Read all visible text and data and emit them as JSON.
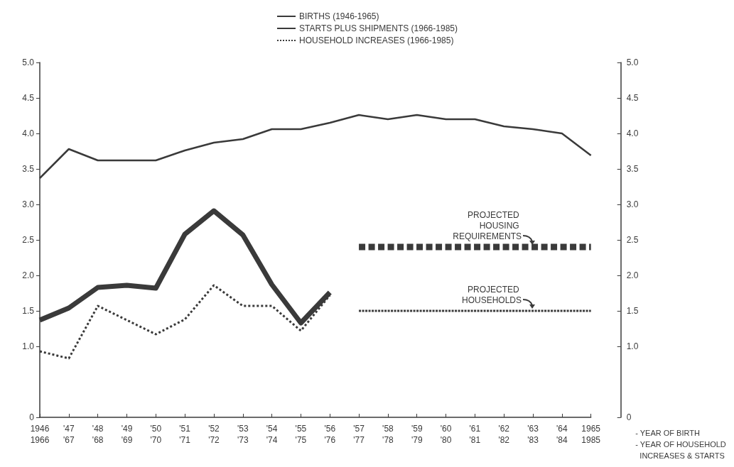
{
  "chart_data": {
    "type": "line",
    "categories": [
      "1946\n1966",
      "'47\n'67",
      "'48\n'68",
      "'49\n'69",
      "'50\n'70",
      "'51\n'71",
      "'52\n'72",
      "'53\n'73",
      "'54\n'74",
      "'55\n'75",
      "'56\n'76",
      "'57\n'77",
      "'58\n'78",
      "'59\n'79",
      "'60\n'80",
      "'61\n'81",
      "'62\n'82",
      "'63\n'83",
      "'64\n'84",
      "1965\n1985"
    ],
    "xlabel": "- YEAR OF BIRTH\n- YEAR OF HOUSEHOLD\n  INCREASES & STARTS",
    "series": [
      {
        "name": "BIRTHS (1946-1965)",
        "color": "#3a3a3a",
        "line_style": "solid",
        "values": [
          3.37,
          3.78,
          3.62,
          3.62,
          3.62,
          3.76,
          3.87,
          3.92,
          4.06,
          4.06,
          4.15,
          4.26,
          4.2,
          4.26,
          4.2,
          4.2,
          4.1,
          4.06,
          4.0,
          3.69
        ]
      },
      {
        "name": "STARTS PLUS SHIPMENTS (1966-1985)",
        "color": "#3a3a3a",
        "line_style": "solid",
        "values": [
          1.37,
          1.54,
          1.83,
          1.86,
          1.82,
          2.58,
          2.91,
          2.57,
          1.87,
          1.33,
          1.76,
          null,
          null,
          null,
          null,
          null,
          null,
          null,
          null,
          null
        ]
      },
      {
        "name": "HOUSEHOLD INCREASES (1966-1985)",
        "color": "#3a3a3a",
        "line_style": "dotted",
        "values": [
          0.93,
          0.83,
          1.57,
          1.37,
          1.17,
          1.38,
          1.86,
          1.57,
          1.57,
          1.22,
          1.72,
          null,
          null,
          null,
          null,
          null,
          null,
          null,
          null,
          null
        ]
      },
      {
        "color": "#3a3a3a",
        "line_style": "dashed",
        "values": [
          null,
          null,
          null,
          null,
          null,
          null,
          null,
          null,
          null,
          null,
          null,
          2.4,
          2.4,
          2.4,
          2.4,
          2.4,
          2.4,
          2.4,
          2.4,
          2.4
        ]
      },
      {
        "color": "#3a3a3a",
        "line_style": "dashed",
        "values": [
          null,
          null,
          null,
          null,
          null,
          null,
          null,
          null,
          null,
          null,
          null,
          1.5,
          1.5,
          1.5,
          1.5,
          1.5,
          1.5,
          1.5,
          1.5,
          1.5
        ]
      }
    ],
    "annotations": [
      {
        "text": "PROJECTED HOUSING REQUIREMENTS",
        "x": "'63\n'83",
        "y": 2.4
      },
      {
        "text": "PROJECTED HOUSEHOLDS",
        "x": "'63\n'83",
        "y": 1.5
      }
    ],
    "ylim": [
      0,
      5
    ],
    "yticks": [
      0,
      {
        "value": 1,
        "label": "1.0"
      },
      1.5,
      {
        "value": 2,
        "label": "2.0"
      },
      2.5,
      {
        "value": 3,
        "label": "3.0"
      },
      3.5,
      {
        "value": 4,
        "label": "4.0"
      },
      4.5,
      {
        "value": 5,
        "label": "5.0"
      }
    ],
    "y2lim": [
      0,
      5
    ],
    "y2ticks": [
      0,
      {
        "value": 1,
        "label": "1.0"
      },
      1.5,
      {
        "value": 2,
        "label": "2.0"
      },
      2.5,
      {
        "value": 3,
        "label": "3.0"
      },
      3.5,
      {
        "value": 4,
        "label": "4.0"
      },
      4.5,
      {
        "value": 5,
        "label": "5.0"
      }
    ],
    "grid": false,
    "legend": "top",
    "marker": "none"
  }
}
